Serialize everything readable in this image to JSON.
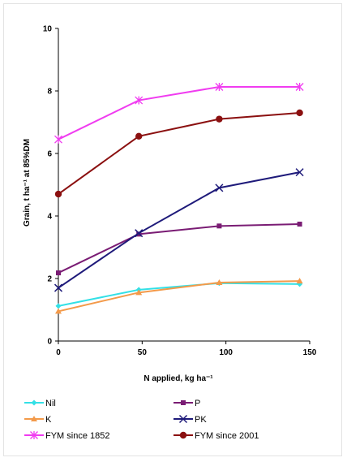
{
  "chart_data": {
    "type": "line",
    "title": "",
    "xlabel": "N applied,  kg ha⁻¹",
    "ylabel": "Grain, t ha⁻¹ at 85%DM",
    "xlim": [
      0,
      150
    ],
    "ylim": [
      0,
      10
    ],
    "xticks": [
      0,
      50,
      100,
      150
    ],
    "yticks": [
      0,
      2,
      4,
      6,
      8,
      10
    ],
    "x": [
      0,
      48,
      96,
      144
    ],
    "grid": false,
    "legend_position": "bottom",
    "series": [
      {
        "name": "Nil",
        "color": "#33e0e6",
        "marker": "diamond",
        "values": [
          1.12,
          1.64,
          1.85,
          1.82
        ]
      },
      {
        "name": "P",
        "color": "#7a1c74",
        "marker": "square",
        "values": [
          2.18,
          3.42,
          3.68,
          3.74
        ]
      },
      {
        "name": "K",
        "color": "#f39a4a",
        "marker": "triangle",
        "values": [
          0.95,
          1.55,
          1.87,
          1.92
        ]
      },
      {
        "name": "PK",
        "color": "#1e1a7a",
        "marker": "x",
        "values": [
          1.7,
          3.45,
          4.9,
          5.4
        ]
      },
      {
        "name": "FYM since 1852",
        "color": "#f03cf0",
        "marker": "star",
        "values": [
          6.45,
          7.7,
          8.13,
          8.13
        ]
      },
      {
        "name": "FYM since 2001",
        "color": "#8b1010",
        "marker": "circle",
        "values": [
          4.7,
          6.55,
          7.1,
          7.3
        ]
      }
    ]
  }
}
